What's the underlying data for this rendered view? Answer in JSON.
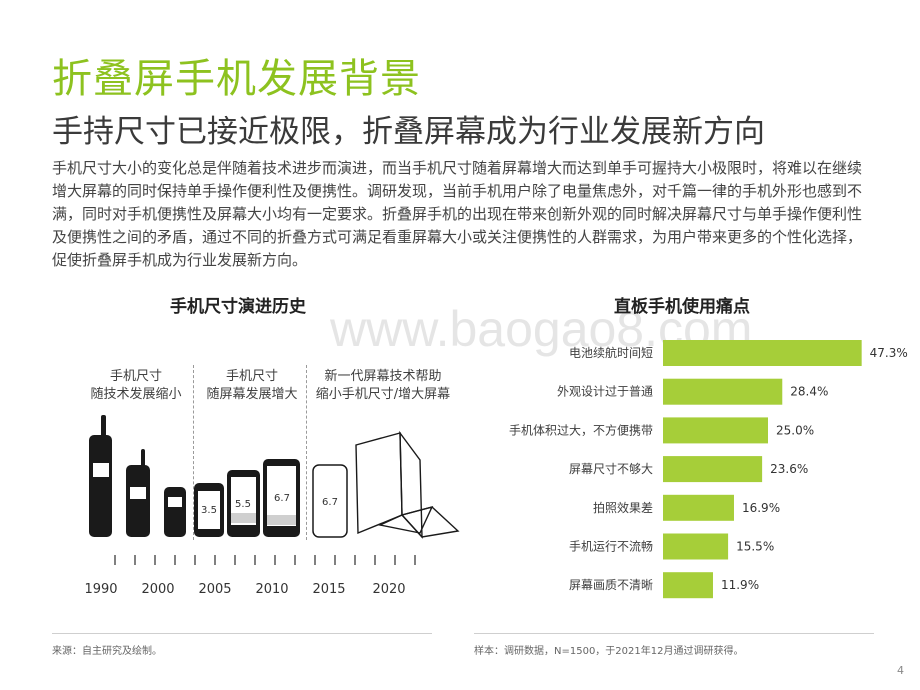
{
  "title": "折叠屏手机发展背景",
  "subtitle": "手持尺寸已接近极限，折叠屏幕成为行业发展新方向",
  "intro": "手机尺寸大小的变化总是伴随着技术进步而演进，而当手机尺寸随着屏幕增大而达到单手可握持大小极限时，将难以在继续增大屏幕的同时保持单手操作便利性及便携性。调研发现，当前手机用户除了电量焦虑外，对千篇一律的手机外形也感到不满，同时对手机便携性及屏幕大小均有一定要求。折叠屏手机的出现在带来创新外观的同时解决屏幕尺寸与单手操作便利性及便携性之间的矛盾，通过不同的折叠方式可满足看重屏幕大小或关注便携性的人群需求，为用户带来更多的个性化选择，促使折叠屏手机成为行业发展新方向。",
  "watermark": "www.baogao8.com",
  "left_panel": {
    "title": "手机尺寸演进历史",
    "eras": [
      {
        "line1": "手机尺寸",
        "line2": "随技术发展缩小"
      },
      {
        "line1": "手机尺寸",
        "line2": "随屏幕发展增大"
      },
      {
        "line1": "新一代屏幕技术帮助",
        "line2": "缩小手机尺寸/增大屏幕"
      }
    ],
    "years": [
      "1990",
      "2000",
      "2005",
      "2010",
      "2015",
      "2020"
    ],
    "screen_sizes": [
      "3.5",
      "5.5",
      "6.7",
      "6.7"
    ]
  },
  "chart_data": {
    "type": "bar",
    "orientation": "horizontal",
    "title": "直板手机使用痛点",
    "categories": [
      "电池续航时间短",
      "外观设计过于普通",
      "手机体积过大，不方便携带",
      "屏幕尺寸不够大",
      "拍照效果差",
      "手机运行不流畅",
      "屏幕画质不清晰"
    ],
    "values": [
      47.3,
      28.4,
      25.0,
      23.6,
      16.9,
      15.5,
      11.9
    ],
    "value_labels": [
      "47.3%",
      "28.4%",
      "25.0%",
      "23.6%",
      "16.9%",
      "15.5%",
      "11.9%"
    ],
    "unit": "%",
    "xlim": [
      0,
      50
    ],
    "bar_color": "#a6ce39",
    "grid": false,
    "legend": "none"
  },
  "footer": {
    "source": "来源：自主研究及绘制。",
    "sample": "样本：调研数据，N=1500，于2021年12月通过调研获得。"
  },
  "page_number": "4",
  "colors": {
    "accent": "#8dc21f",
    "bar": "#a6ce39",
    "phone": "#1a1a1a"
  }
}
